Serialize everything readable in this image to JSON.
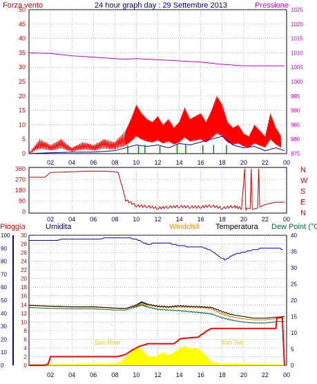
{
  "colors": {
    "wind": "#ff0000",
    "gust": "#0000cc",
    "wind_green": "#008800",
    "pressure": "#cc00cc",
    "direction": "#cc0000",
    "humidity": "#0000cc",
    "rain": "#ff0000",
    "windchill": "#ff8800",
    "temperature": "#000000",
    "dewpoint": "#006633",
    "sun": "#ffff00",
    "sun_label": "#e6c800",
    "axis_left": "#cc0000",
    "axis_blue": "#000099",
    "axis_dark": "#000066",
    "grid": "#888888"
  },
  "chart_data": [
    {
      "type": "line",
      "title": "24 hour graph day : 29 Settembre 2013",
      "left_label": "Forza vento",
      "right_label": "Pressione",
      "x_ticks": [
        "02",
        "04",
        "06",
        "08",
        "10",
        "12",
        "14",
        "16",
        "18",
        "20",
        "22",
        "00"
      ],
      "y_left_ticks": [
        "50",
        "45",
        "40",
        "35",
        "30",
        "25",
        "20",
        "15",
        "10",
        "5",
        "0"
      ],
      "y_left_lim": [
        0,
        50
      ],
      "y_right_ticks": [
        "1025",
        "1020",
        "1015",
        "1010",
        "1005",
        "1000",
        "995",
        "990",
        "985",
        "980",
        "975"
      ],
      "y_right_lim": [
        975,
        1025
      ],
      "grid": true,
      "series": [
        {
          "name": "Pressione",
          "x": [
            0,
            2,
            4,
            6,
            8,
            9,
            10,
            12,
            14,
            16,
            18,
            20,
            22,
            23.8
          ],
          "values": [
            1010.0,
            1009.8,
            1009.0,
            1008.5,
            1008.0,
            1007.8,
            1008.0,
            1007.6,
            1007.2,
            1006.8,
            1006.0,
            1005.5,
            1005.5,
            1005.5
          ]
        },
        {
          "name": "Forza vento",
          "x": [
            0,
            1,
            2,
            3,
            4,
            5,
            6,
            7,
            8,
            9,
            9.5,
            10,
            10.5,
            11,
            11.5,
            12,
            12.5,
            13,
            13.5,
            14,
            14.5,
            15,
            15.5,
            16,
            16.5,
            17,
            17.5,
            18,
            18.5,
            19,
            19.5,
            20,
            20.5,
            21,
            21.5,
            22,
            22.5,
            23,
            23.5
          ],
          "values": [
            0,
            5,
            3,
            5,
            2,
            4,
            3,
            5,
            4,
            8,
            12,
            17,
            14,
            12,
            11,
            13,
            10,
            12,
            9,
            11,
            16,
            12,
            13,
            14,
            11,
            15,
            20,
            17,
            11,
            9,
            10,
            7,
            6,
            10,
            8,
            6,
            14,
            9,
            6
          ]
        },
        {
          "name": "",
          "x": [
            0,
            2,
            4,
            6,
            8,
            9,
            10,
            11,
            12,
            13,
            14,
            15,
            16,
            17,
            18,
            19,
            20,
            21,
            22,
            23,
            23.8
          ],
          "values": [
            0,
            0.3,
            0.5,
            0.5,
            1,
            2,
            3,
            2.5,
            3,
            2,
            3.5,
            3,
            4,
            5,
            6,
            3,
            2,
            2.5,
            1,
            2,
            1
          ]
        }
      ]
    },
    {
      "type": "line",
      "y_ticks": [
        "360",
        "270",
        "180",
        "90",
        "0"
      ],
      "y_lim": [
        0,
        360
      ],
      "right_labels": [
        "N",
        "W",
        "S",
        "E",
        "N"
      ],
      "x_ticks": [
        "02",
        "04",
        "06",
        "08",
        "10",
        "12",
        "14",
        "16",
        "18",
        "20",
        "22",
        "00"
      ],
      "grid": true,
      "series": [
        {
          "name": "",
          "x": [
            0,
            1.5,
            2,
            4,
            5.5,
            6,
            7,
            8,
            8.3,
            8.6,
            9,
            10,
            11,
            12,
            13,
            14,
            15,
            16,
            17,
            18,
            19,
            19.8,
            20.1,
            20.2,
            20.3,
            20.6,
            20.7,
            20.8,
            21.3,
            21.4,
            21.5,
            22,
            23,
            23.8
          ],
          "values": [
            290,
            290,
            330,
            335,
            340,
            340,
            340,
            335,
            330,
            240,
            100,
            50,
            45,
            30,
            40,
            45,
            40,
            40,
            50,
            30,
            45,
            30,
            360,
            10,
            30,
            25,
            360,
            20,
            30,
            360,
            40,
            60,
            80,
            80
          ]
        }
      ]
    },
    {
      "type": "line",
      "legend": [
        "Pioggia",
        "Umidita",
        "Windchill",
        "Temperatura",
        "Dew Point (°C"
      ],
      "x_ticks": [
        "02",
        "04",
        "06",
        "08",
        "10",
        "12",
        "14",
        "16",
        "18",
        "20",
        "22",
        "00"
      ],
      "y_ticks_humidity": [
        "100",
        "90",
        "80",
        "70",
        "60",
        "50",
        "40",
        "30",
        "20",
        "10",
        "0"
      ],
      "y_ticks_rain": [
        "30",
        "28",
        "26",
        "24",
        "22",
        "20",
        "18",
        "16",
        "14",
        "12",
        "10",
        "8",
        "6",
        "4",
        "2",
        "0"
      ],
      "y_ticks_temp": [
        "40",
        "35",
        "30",
        "25",
        "20",
        "15",
        "10",
        "5",
        "0"
      ],
      "annotations": [
        "Sun Rise",
        "Sun Set"
      ],
      "grid": true,
      "series": [
        {
          "name": "Umidita",
          "x": [
            0,
            2,
            4,
            6,
            8,
            9,
            10,
            11,
            12,
            13,
            14,
            15,
            16,
            17,
            18,
            18.3,
            19,
            20,
            21,
            22,
            23,
            23.8
          ],
          "values": [
            96,
            96,
            97,
            97,
            98,
            98,
            97,
            93,
            94,
            94,
            92,
            91,
            91,
            88,
            82,
            81,
            85,
            87,
            89,
            90,
            90,
            89
          ]
        },
        {
          "name": "Temperatura",
          "x": [
            0,
            2,
            4,
            6,
            8,
            9,
            10,
            10.5,
            11,
            12,
            13,
            14,
            15,
            16,
            17,
            18,
            19,
            20,
            21,
            22,
            23,
            23.8
          ],
          "values": [
            18.5,
            18.2,
            18.0,
            18.0,
            17.6,
            17.5,
            18.5,
            19.5,
            18.8,
            18.2,
            18.0,
            18.3,
            18.1,
            18.0,
            17.8,
            16.5,
            15.5,
            15.0,
            14.5,
            14.5,
            14.8,
            15.0
          ]
        },
        {
          "name": "Windchill",
          "x": [
            0,
            2,
            4,
            6,
            8,
            9,
            10,
            10.5,
            11,
            12,
            13,
            14,
            15,
            16,
            17,
            18,
            19,
            20,
            21,
            22,
            23,
            23.8
          ],
          "values": [
            18.4,
            18.1,
            17.9,
            17.9,
            17.5,
            17.4,
            18.3,
            19.2,
            18.6,
            18.0,
            17.8,
            18.0,
            17.9,
            17.8,
            17.4,
            15.8,
            14.8,
            14.3,
            14.0,
            14.0,
            14.4,
            14.6
          ]
        },
        {
          "name": "Dew Point (°C",
          "x": [
            0,
            2,
            4,
            6,
            8,
            9,
            10,
            10.5,
            11,
            12,
            13,
            14,
            15,
            16,
            17,
            18,
            19,
            20,
            21,
            22,
            23,
            23.8
          ],
          "values": [
            17.8,
            17.5,
            17.4,
            17.4,
            17.0,
            17.0,
            18.0,
            18.6,
            18.0,
            17.2,
            17.0,
            16.8,
            16.5,
            16.2,
            15.8,
            14.6,
            13.8,
            13.3,
            13.0,
            13.0,
            13.4,
            13.5
          ]
        },
        {
          "name": "Pioggia",
          "x": [
            0,
            1.5,
            1.8,
            2,
            8.2,
            9,
            9.3,
            9.6,
            10,
            10.3,
            10.6,
            10.9,
            11,
            13.5,
            13.8,
            14,
            14.3,
            15.8,
            16,
            16.3,
            16.6,
            17,
            23,
            23.1,
            23.6,
            23.8
          ],
          "values": [
            0,
            0,
            0.4,
            2,
            2,
            2.5,
            3,
            3.5,
            4,
            4.4,
            4.6,
            4.8,
            5,
            5,
            5.5,
            6,
            6.2,
            6.5,
            7,
            7.4,
            8,
            8.5,
            8.5,
            11,
            11,
            0
          ]
        },
        {
          "name": "",
          "x": [
            0,
            6,
            7,
            8,
            8.5,
            9,
            9.5,
            10,
            10.5,
            11,
            11.5,
            12,
            12.5,
            13,
            13.5,
            14,
            14.5,
            15,
            15.5,
            16,
            16.5,
            17,
            17.5,
            18,
            19,
            20,
            21,
            22,
            23,
            23.8
          ],
          "values": [
            0.3,
            0.5,
            0.5,
            0.6,
            1,
            2.5,
            4,
            5.5,
            5,
            3,
            2.5,
            3,
            4,
            3,
            4,
            5,
            6,
            5,
            5.5,
            4.5,
            3,
            1,
            0.8,
            0.5,
            0.6,
            0.5,
            0.4,
            0.4,
            0.3,
            0.3
          ]
        }
      ]
    }
  ]
}
